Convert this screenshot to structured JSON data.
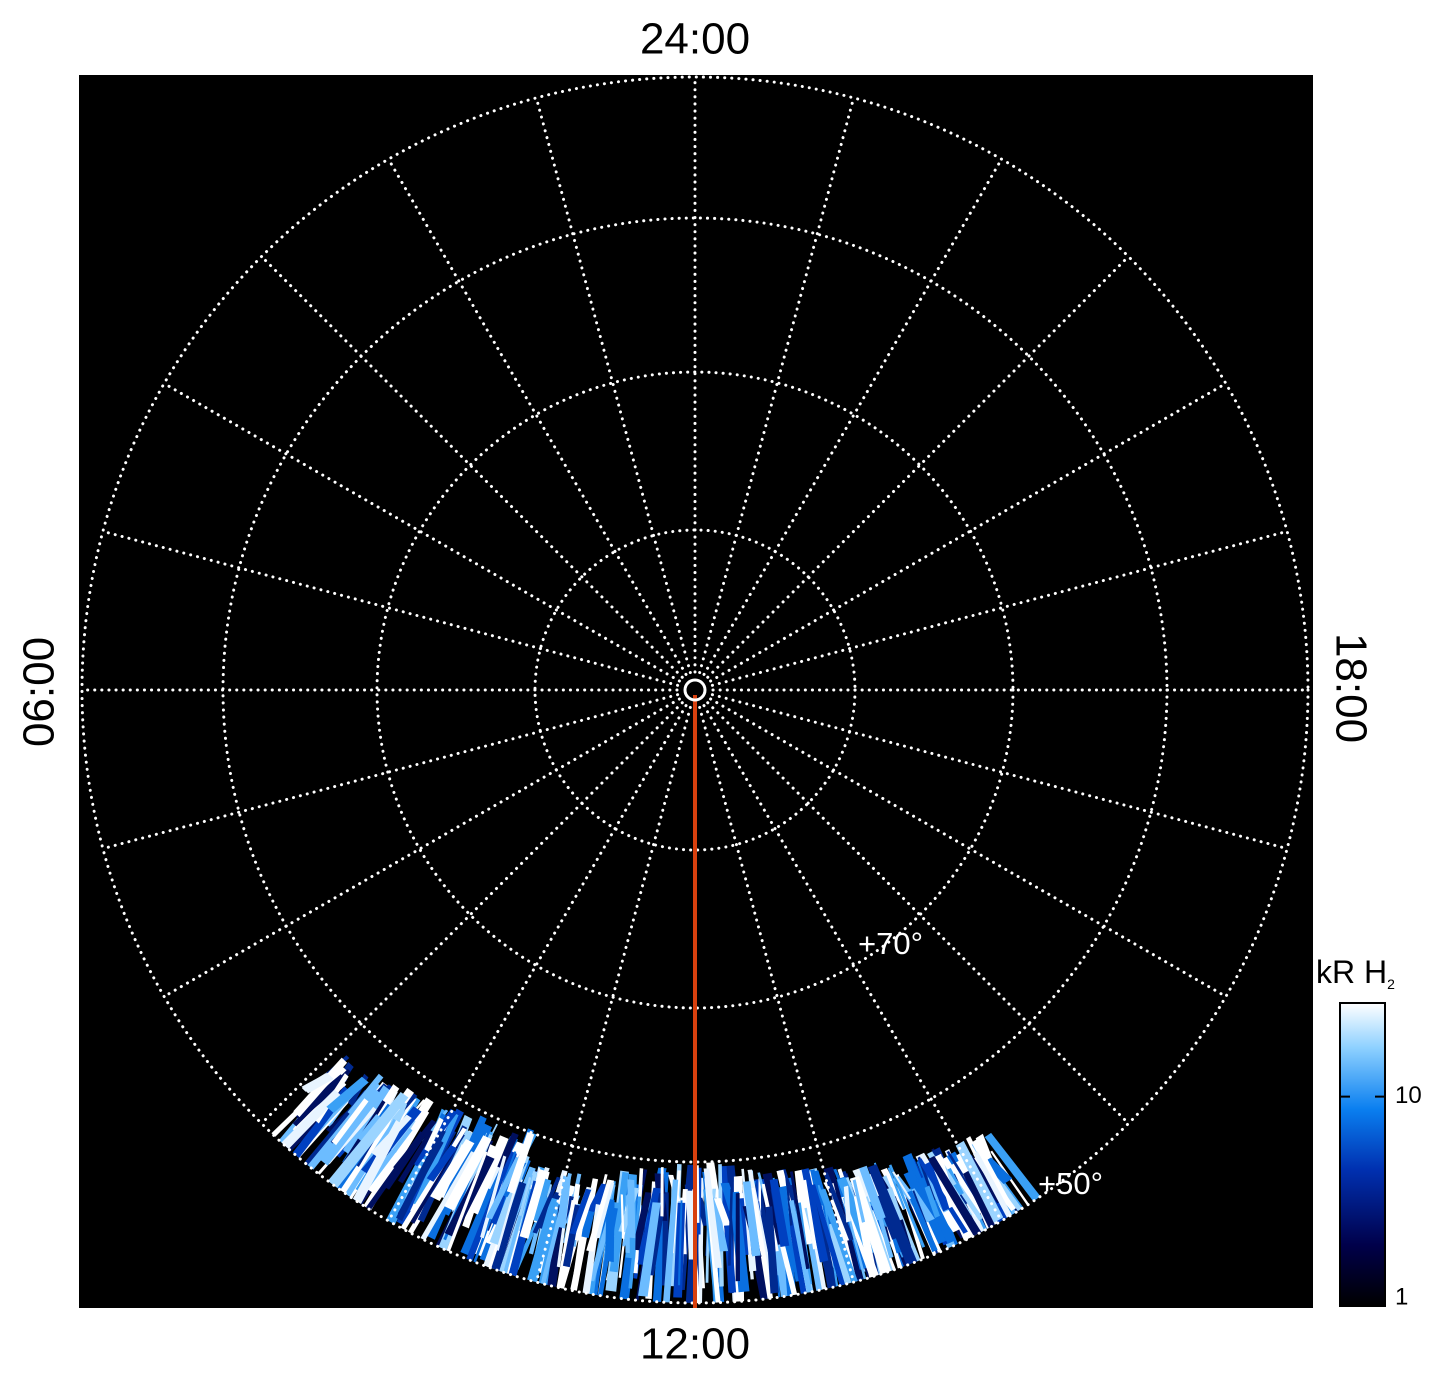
{
  "plot": {
    "local_time_labels": {
      "top": "24:00",
      "bottom": "12:00",
      "left": "06:00",
      "right": "18:00"
    },
    "latitude_labels": [
      "+70°",
      "+50°"
    ],
    "colorbar": {
      "title": "kR H",
      "title_subscript": "2",
      "scale": "log",
      "lim": [
        1,
        28
      ],
      "ticks": [
        1,
        10
      ]
    }
  }
}
